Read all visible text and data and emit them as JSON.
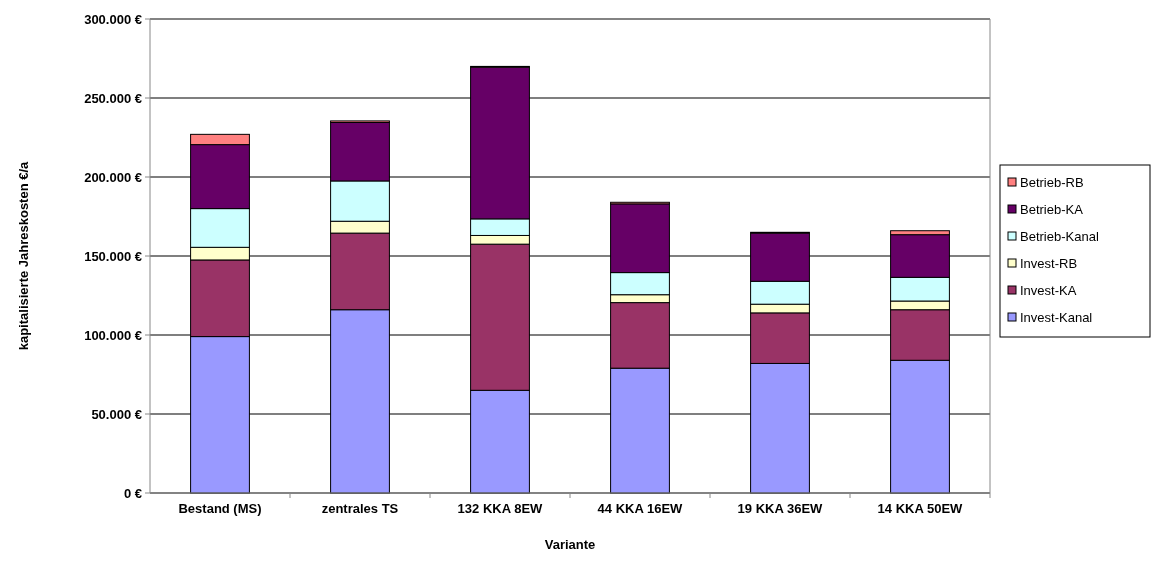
{
  "chart_data": {
    "type": "bar",
    "stacked": true,
    "xlabel": "Variante",
    "ylabel": "kapitalisierte Jahreskosten €/a",
    "categories": [
      "Bestand (MS)",
      "zentrales TS",
      "132 KKA 8EW",
      "44 KKA 16EW",
      "19 KKA 36EW",
      "14 KKA 50EW"
    ],
    "series": [
      {
        "name": "Invest-Kanal",
        "color": "#9999ff",
        "values": [
          99000,
          116000,
          65000,
          79000,
          82000,
          84000
        ]
      },
      {
        "name": "Invest-KA",
        "color": "#993366",
        "values": [
          48500,
          48500,
          92500,
          41500,
          32000,
          32000
        ]
      },
      {
        "name": "Invest-RB",
        "color": "#ffffcc",
        "values": [
          8000,
          7500,
          5500,
          5000,
          5500,
          5500
        ]
      },
      {
        "name": "Betrieb-Kanal",
        "color": "#ccffff",
        "values": [
          24500,
          25500,
          10500,
          14000,
          14500,
          15000
        ]
      },
      {
        "name": "Betrieb-KA",
        "color": "#660066",
        "values": [
          40500,
          37000,
          96000,
          43500,
          30500,
          27000
        ]
      },
      {
        "name": "Betrieb-RB",
        "color": "#ff8080",
        "values": [
          6500,
          1000,
          500,
          1000,
          500,
          2500
        ]
      }
    ],
    "ylim": [
      0,
      300000
    ],
    "yticks": [
      {
        "value": 0,
        "label": "0 €"
      },
      {
        "value": 50000,
        "label": "50.000 €"
      },
      {
        "value": 100000,
        "label": "100.000 €"
      },
      {
        "value": 150000,
        "label": "150.000 €"
      },
      {
        "value": 200000,
        "label": "200.000 €"
      },
      {
        "value": 250000,
        "label": "250.000 €"
      },
      {
        "value": 300000,
        "label": "300.000 €"
      }
    ],
    "grid": "y",
    "legend": "right"
  }
}
